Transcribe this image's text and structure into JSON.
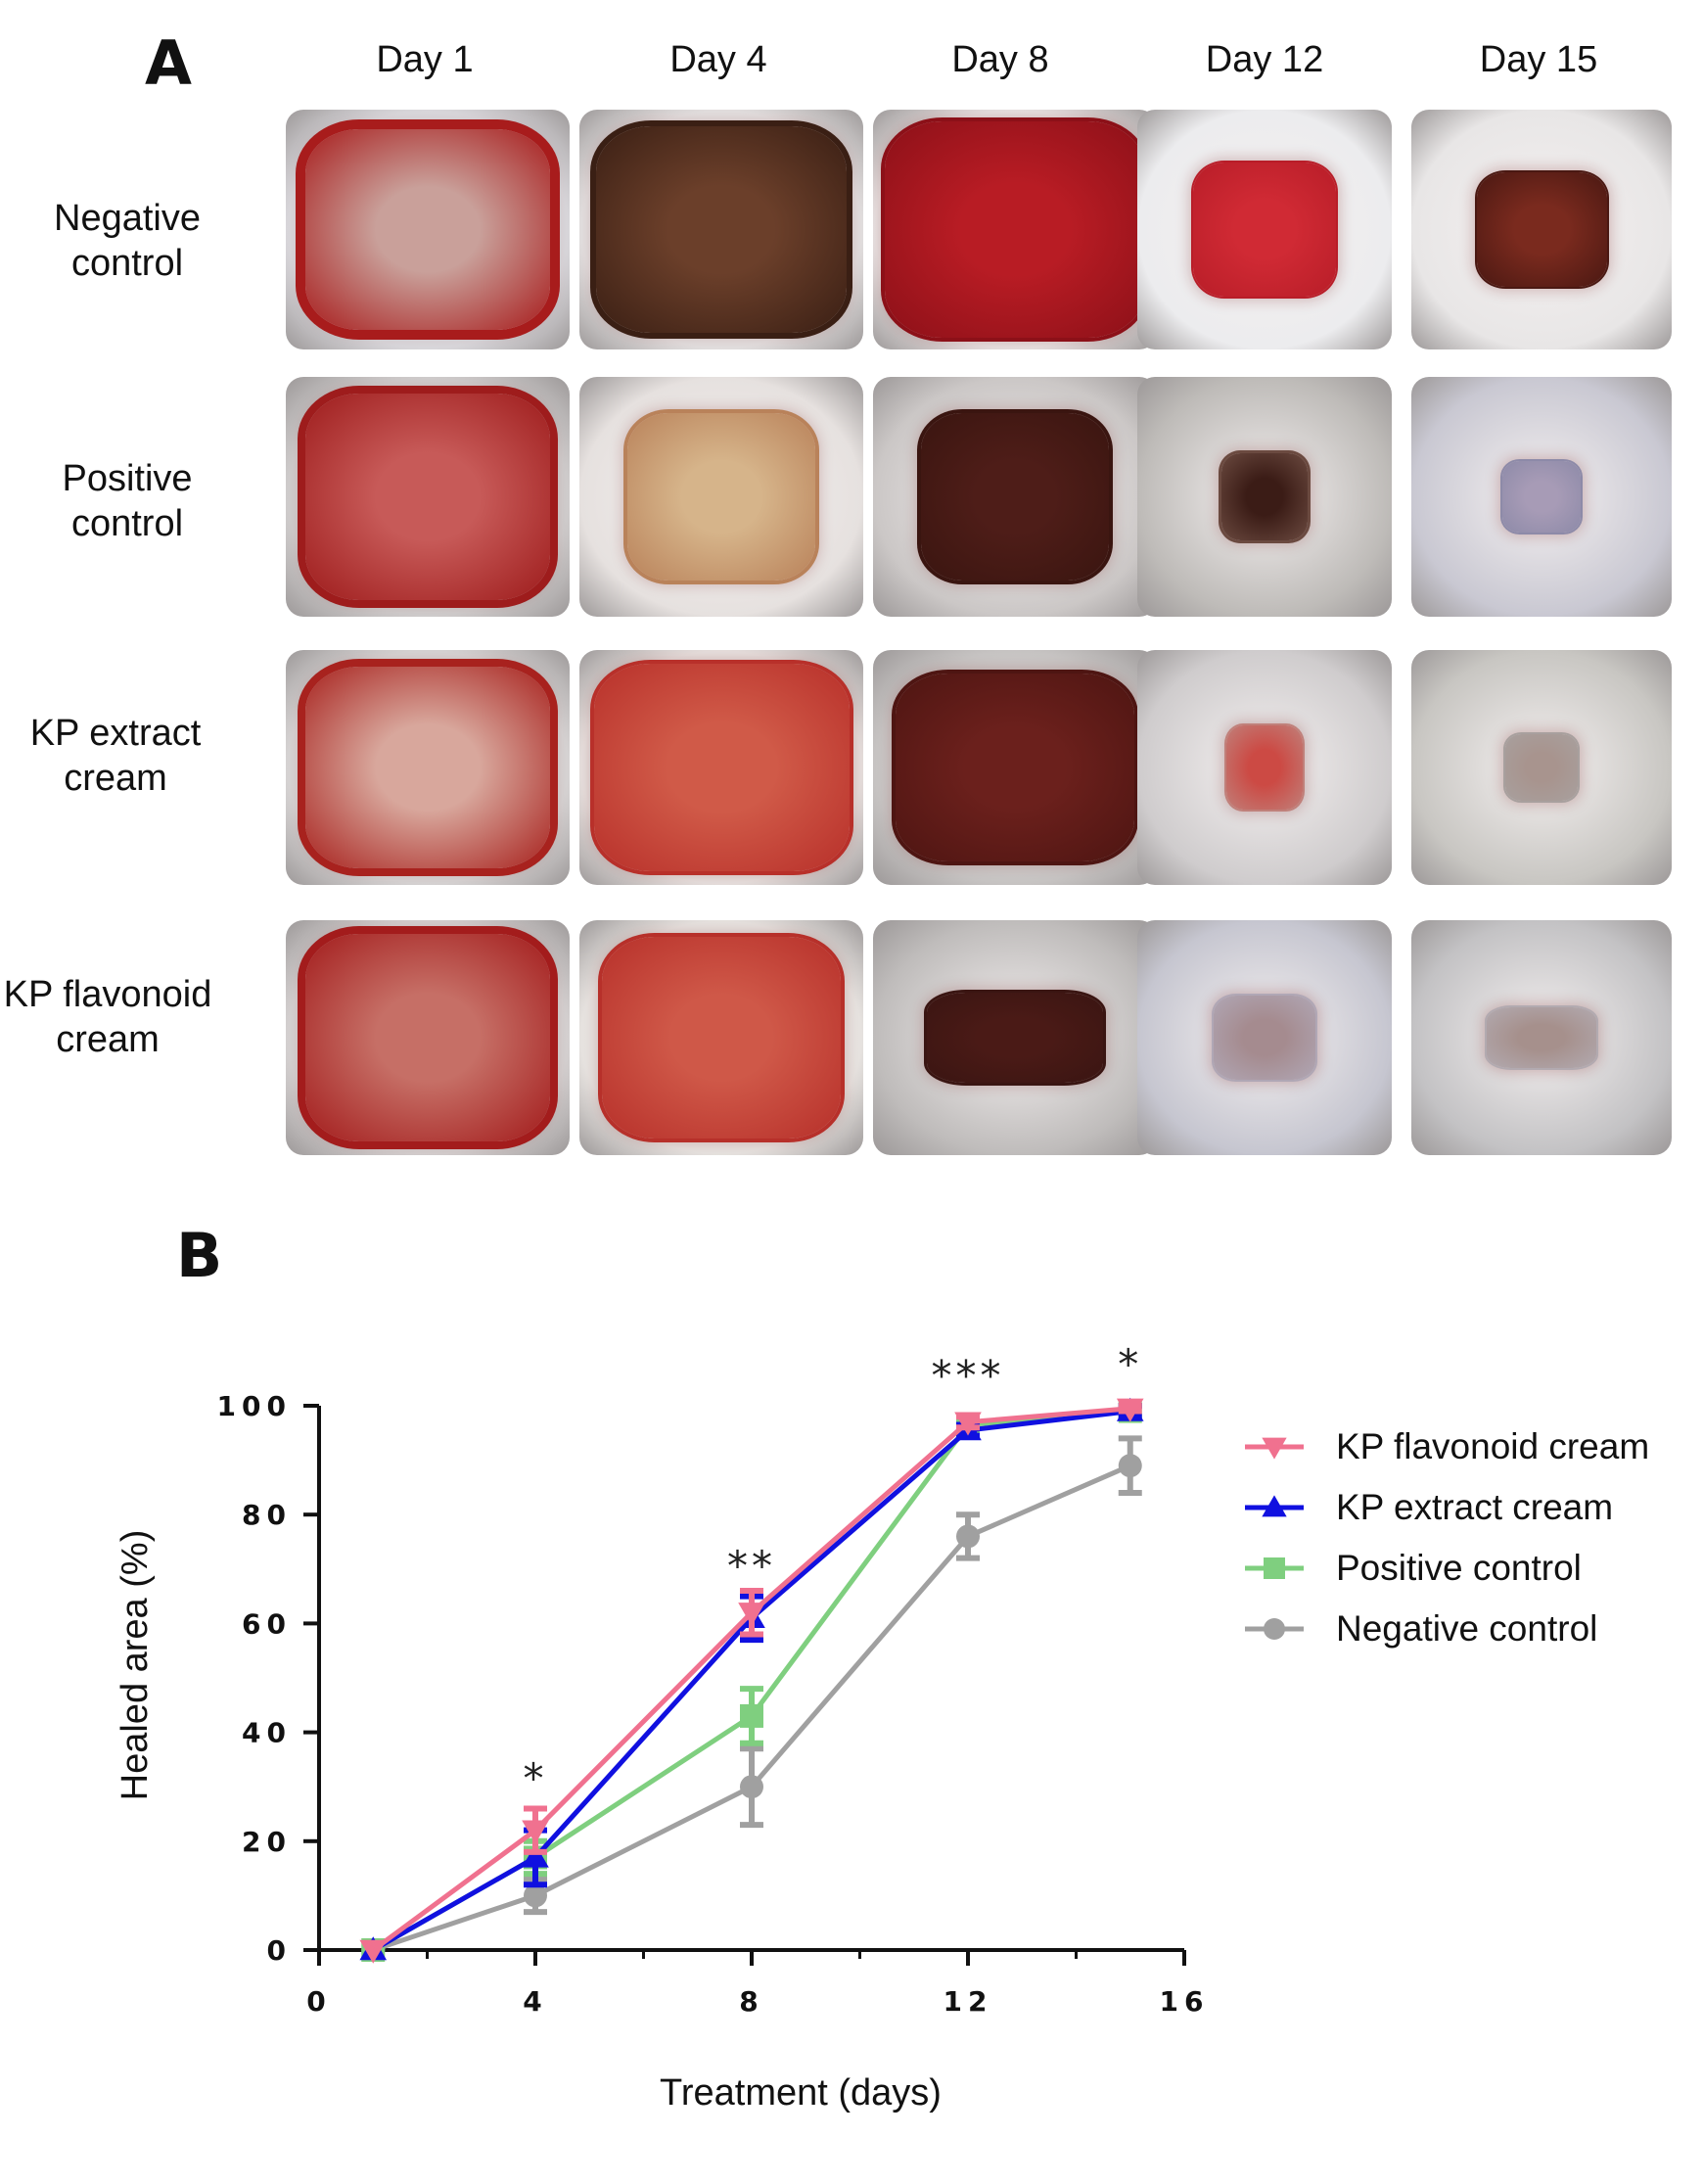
{
  "panel_a": {
    "letter": "A",
    "columns": [
      "Day 1",
      "Day 4",
      "Day 8",
      "Day 12",
      "Day 15"
    ],
    "rows": [
      {
        "line1": "Negative",
        "line2": "control"
      },
      {
        "line1": "Positive",
        "line2": "control"
      },
      {
        "line1": "KP extract",
        "line2": "cream"
      },
      {
        "line1": "KP flavonoid",
        "line2": "cream"
      }
    ]
  },
  "panel_b": {
    "letter": "B"
  },
  "chart_data": {
    "type": "line",
    "xlabel": "Treatment (days)",
    "ylabel": "Healed area (%)",
    "xlim": [
      0,
      16
    ],
    "ylim": [
      0,
      100
    ],
    "xticks": [
      "0",
      "4",
      "8",
      "12",
      "16"
    ],
    "yticks": [
      "0",
      "20",
      "40",
      "60",
      "80",
      "100"
    ],
    "grid": false,
    "legend_position": "right",
    "x": [
      1,
      4,
      8,
      12,
      15
    ],
    "series": [
      {
        "name": "KP flavonoid cream",
        "color": "#f0718f",
        "marker": "triangle-down",
        "values": [
          0,
          22,
          62,
          97,
          99.5
        ],
        "errors": [
          0,
          4,
          4,
          1,
          0.5
        ]
      },
      {
        "name": "KP extract cream",
        "color": "#1010e0",
        "marker": "triangle-up",
        "values": [
          0,
          17,
          61,
          95.5,
          99
        ],
        "errors": [
          0,
          5,
          4,
          1,
          1
        ]
      },
      {
        "name": "Positive control",
        "color": "#7fcf7f",
        "marker": "square",
        "values": [
          0,
          17,
          43,
          96.5,
          99
        ],
        "errors": [
          0,
          3,
          5,
          1,
          1
        ]
      },
      {
        "name": "Negative control",
        "color": "#a0a0a0",
        "marker": "circle",
        "values": [
          0,
          10,
          30,
          76,
          89
        ],
        "errors": [
          0,
          3,
          7,
          4,
          5
        ]
      }
    ],
    "annotations": [
      {
        "x": 4,
        "y": 29,
        "text": "*"
      },
      {
        "x": 8,
        "y": 68,
        "text": "**"
      },
      {
        "x": 12,
        "y": 103,
        "text": "***"
      },
      {
        "x": 15,
        "y": 105,
        "text": "*"
      }
    ]
  }
}
